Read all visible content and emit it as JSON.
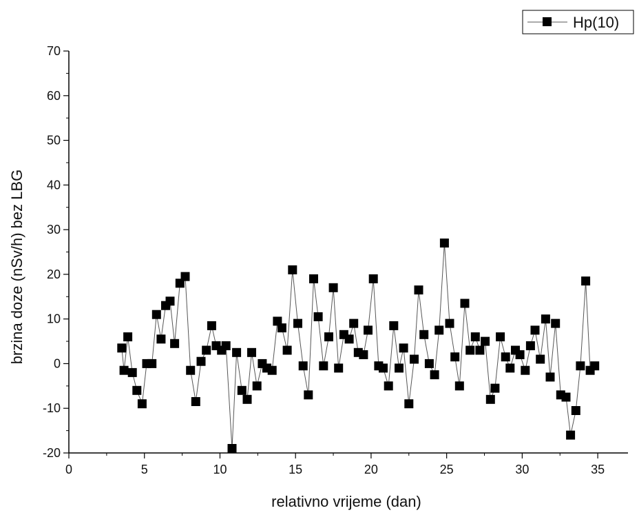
{
  "chart_data": {
    "type": "line",
    "xlabel": "relativno vrijeme (dan)",
    "ylabel": "brzina doze (nSv/h) bez LBG",
    "xlim": [
      0,
      37
    ],
    "ylim": [
      -20,
      70
    ],
    "x_ticks": [
      0,
      5,
      10,
      15,
      20,
      25,
      30,
      35
    ],
    "y_ticks": [
      -20,
      -10,
      0,
      10,
      20,
      30,
      40,
      50,
      60,
      70
    ],
    "grid": false,
    "legend_position": "top-right",
    "marker": "square",
    "line_color": "#555555",
    "marker_color": "#000000",
    "series": [
      {
        "name": "Hp(10)",
        "x": [
          3.5,
          3.65,
          3.9,
          4.2,
          4.5,
          4.85,
          5.15,
          5.5,
          5.8,
          6.1,
          6.4,
          6.7,
          7.0,
          7.35,
          7.7,
          8.05,
          8.4,
          8.75,
          9.1,
          9.45,
          9.75,
          10.1,
          10.4,
          10.8,
          11.1,
          11.45,
          11.8,
          12.1,
          12.45,
          12.8,
          13.1,
          13.45,
          13.8,
          14.1,
          14.45,
          14.8,
          15.15,
          15.5,
          15.85,
          16.2,
          16.5,
          16.85,
          17.2,
          17.5,
          17.85,
          18.2,
          18.55,
          18.85,
          19.15,
          19.5,
          19.8,
          20.15,
          20.5,
          20.8,
          21.15,
          21.5,
          21.85,
          22.15,
          22.5,
          22.85,
          23.15,
          23.5,
          23.85,
          24.2,
          24.5,
          24.85,
          25.2,
          25.55,
          25.85,
          26.2,
          26.55,
          26.9,
          27.2,
          27.55,
          27.9,
          28.2,
          28.55,
          28.9,
          29.2,
          29.55,
          29.85,
          30.2,
          30.55,
          30.85,
          31.2,
          31.55,
          31.85,
          32.2,
          32.55,
          32.9,
          33.2,
          33.55,
          33.85,
          34.2,
          34.5,
          34.8
        ]
      }
    ]
  }
}
